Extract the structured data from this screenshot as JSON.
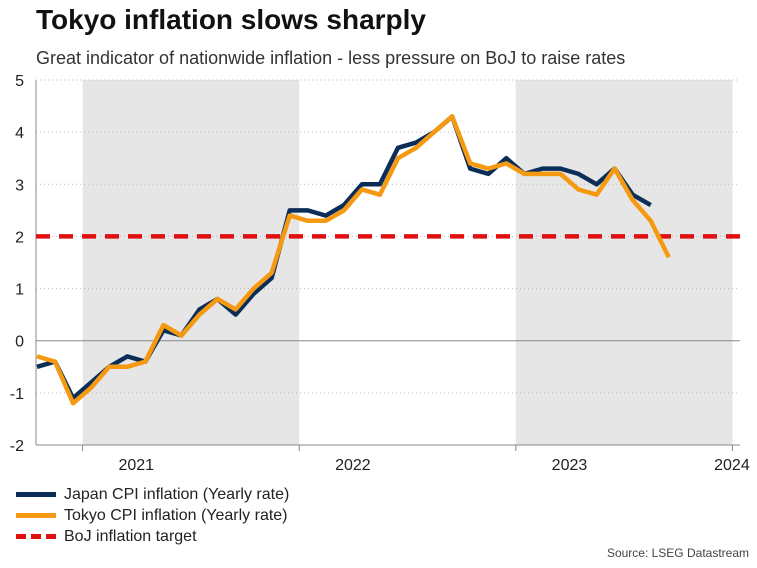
{
  "header": {
    "title": "Tokyo inflation slows sharply",
    "subtitle": "Great indicator of nationwide inflation - less pressure on BoJ to raise rates"
  },
  "source": "Source: LSEG Datastream",
  "colors": {
    "japan": "#0b2e59",
    "tokyo": "#f59a10",
    "target": "#e01010",
    "shade": "#e6e6e6",
    "grid": "#bbbbbb",
    "axis": "#888888"
  },
  "chart_data": {
    "type": "line",
    "title": "Tokyo inflation slows sharply",
    "xlabel": "",
    "ylabel": "",
    "ylim": [
      -2,
      5
    ],
    "yticks": [
      -2,
      -1,
      0,
      1,
      2,
      3,
      4,
      5
    ],
    "x_start": "2020-10",
    "n_months": 42,
    "year_labels": [
      {
        "label": "2021",
        "center_month_index": 5.5
      },
      {
        "label": "2022",
        "center_month_index": 17.5
      },
      {
        "label": "2023",
        "center_month_index": 29.5
      },
      {
        "label": "2024",
        "center_month_index": 38.5
      }
    ],
    "shaded_years": [
      "2021",
      "2023"
    ],
    "grid": "horizontal dotted",
    "legend_position": "bottom-left",
    "series": [
      {
        "name": "Japan CPI inflation (Yearly rate)",
        "values": [
          -0.5,
          -0.4,
          -1.1,
          -0.8,
          -0.5,
          -0.3,
          -0.4,
          0.2,
          0.1,
          0.6,
          0.8,
          0.5,
          0.9,
          1.2,
          2.5,
          2.5,
          2.4,
          2.6,
          3.0,
          3.0,
          3.7,
          3.8,
          4.0,
          4.3,
          3.3,
          3.2,
          3.5,
          3.2,
          3.3,
          3.3,
          3.2,
          3.0,
          3.3,
          2.8,
          2.6
        ]
      },
      {
        "name": "Tokyo CPI inflation (Yearly rate)",
        "values": [
          -0.3,
          -0.4,
          -1.2,
          -0.9,
          -0.5,
          -0.5,
          -0.4,
          0.3,
          0.1,
          0.5,
          0.8,
          0.6,
          1.0,
          1.3,
          2.4,
          2.3,
          2.3,
          2.5,
          2.9,
          2.8,
          3.5,
          3.7,
          4.0,
          4.3,
          3.4,
          3.3,
          3.4,
          3.2,
          3.2,
          3.2,
          2.9,
          2.8,
          3.3,
          2.7,
          2.3,
          1.6
        ]
      },
      {
        "name": "BoJ inflation target",
        "constant": 2.0
      }
    ]
  },
  "legend": [
    {
      "label": "Japan CPI inflation (Yearly rate)"
    },
    {
      "label": "Tokyo CPI inflation (Yearly rate)"
    },
    {
      "label": "BoJ inflation target"
    }
  ]
}
